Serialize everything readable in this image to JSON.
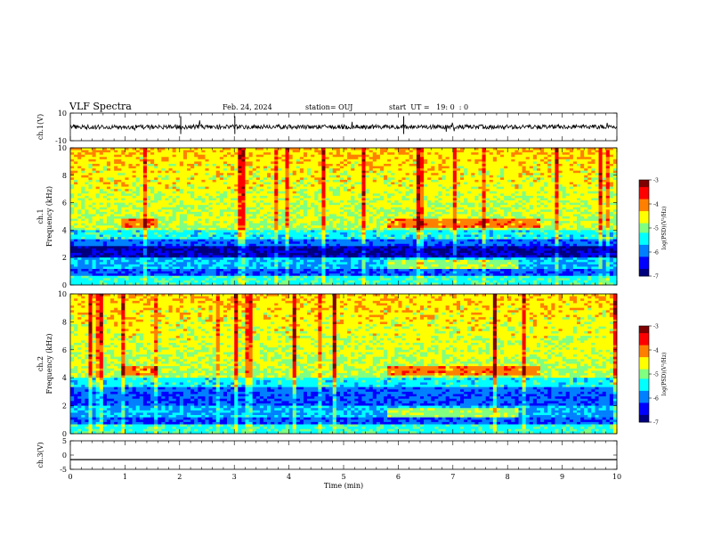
{
  "header": {
    "title": "VLF Spectra",
    "date": "Feb. 24, 2024",
    "station": "station= OUJ",
    "start": "start  UT =   19: 0  : 0"
  },
  "colors": {
    "spectrogram_colormap": [
      "#00007f",
      "#0000ff",
      "#0080ff",
      "#00ffff",
      "#80ff80",
      "#ffff00",
      "#ff8000",
      "#ff0000",
      "#7f0000"
    ],
    "trace": "#000000"
  },
  "chart_data": [
    {
      "type": "line",
      "panel": "ch.1(V)",
      "ylabel": "ch.1(V)",
      "ylim": [
        -10,
        10
      ],
      "yticks": [
        "10",
        "-10"
      ],
      "xlim": [
        0,
        10
      ],
      "series": [
        {
          "x": [
            0,
            10
          ],
          "values": [
            0,
            0
          ]
        }
      ]
    },
    {
      "type": "heatmap",
      "panel": "ch.1",
      "ylabel": "ch.1\nFrequency  (kHz)",
      "ylim": [
        0,
        10
      ],
      "yticks": [
        "0",
        "2",
        "4",
        "6",
        "8",
        "10"
      ],
      "xlim": [
        0,
        10
      ],
      "colorbar": {
        "label": "log(PSD)(V²/Hz)",
        "range": [
          -7,
          -3
        ],
        "ticks": [
          "-3",
          "-4",
          "-5",
          "-6",
          "-7"
        ]
      }
    },
    {
      "type": "heatmap",
      "panel": "ch.2",
      "ylabel": "ch.2\nFrequency  (kHz)",
      "ylim": [
        0,
        10
      ],
      "yticks": [
        "0",
        "2",
        "4",
        "6",
        "8",
        "10"
      ],
      "xlim": [
        0,
        10
      ],
      "colorbar": {
        "label": "log(PSD)(V²/Hz)",
        "range": [
          -7,
          -3
        ],
        "ticks": [
          "-3",
          "-4",
          "-5",
          "-6",
          "-7"
        ]
      }
    },
    {
      "type": "line",
      "panel": "ch.3(V)",
      "ylabel": "ch.3(V)",
      "ylim": [
        -5,
        5
      ],
      "yticks": [
        "5",
        "0",
        "-5"
      ],
      "xlim": [
        0,
        10
      ],
      "xlabel": "Time  (min)",
      "xticks": [
        "0",
        "1",
        "2",
        "3",
        "4",
        "5",
        "6",
        "7",
        "8",
        "9",
        "10"
      ],
      "series": [
        {
          "x": [
            0,
            10
          ],
          "values": [
            -1.6,
            -1.6
          ]
        }
      ]
    }
  ]
}
